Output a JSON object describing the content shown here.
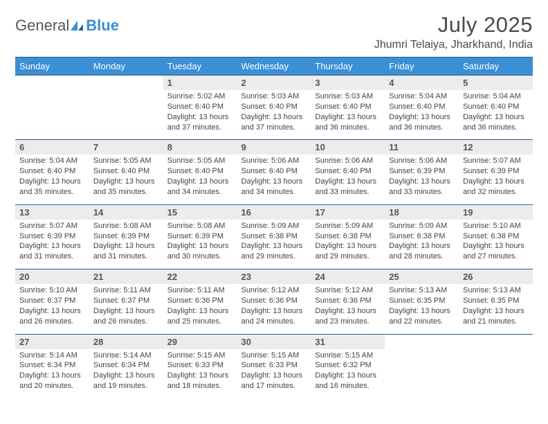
{
  "logo": {
    "text1": "General",
    "text2": "Blue"
  },
  "title": "July 2025",
  "location": "Jhumri Telaiya, Jharkhand, India",
  "colors": {
    "header_bg": "#3b8fd4",
    "header_border": "#2b5d86",
    "numrow_bg": "#ececec",
    "text": "#4a4a4a"
  },
  "typography": {
    "title_fontsize": 31,
    "location_fontsize": 16,
    "dayhead_fontsize": 13,
    "cell_fontsize": 11
  },
  "layout": {
    "cols": 7,
    "rows": 5
  },
  "dayNames": [
    "Sunday",
    "Monday",
    "Tuesday",
    "Wednesday",
    "Thursday",
    "Friday",
    "Saturday"
  ],
  "weeks": [
    [
      null,
      null,
      {
        "n": "1",
        "sr": "5:02 AM",
        "ss": "6:40 PM",
        "dl": "13 hours and 37 minutes."
      },
      {
        "n": "2",
        "sr": "5:03 AM",
        "ss": "6:40 PM",
        "dl": "13 hours and 37 minutes."
      },
      {
        "n": "3",
        "sr": "5:03 AM",
        "ss": "6:40 PM",
        "dl": "13 hours and 36 minutes."
      },
      {
        "n": "4",
        "sr": "5:04 AM",
        "ss": "6:40 PM",
        "dl": "13 hours and 36 minutes."
      },
      {
        "n": "5",
        "sr": "5:04 AM",
        "ss": "6:40 PM",
        "dl": "13 hours and 36 minutes."
      }
    ],
    [
      {
        "n": "6",
        "sr": "5:04 AM",
        "ss": "6:40 PM",
        "dl": "13 hours and 35 minutes."
      },
      {
        "n": "7",
        "sr": "5:05 AM",
        "ss": "6:40 PM",
        "dl": "13 hours and 35 minutes."
      },
      {
        "n": "8",
        "sr": "5:05 AM",
        "ss": "6:40 PM",
        "dl": "13 hours and 34 minutes."
      },
      {
        "n": "9",
        "sr": "5:06 AM",
        "ss": "6:40 PM",
        "dl": "13 hours and 34 minutes."
      },
      {
        "n": "10",
        "sr": "5:06 AM",
        "ss": "6:40 PM",
        "dl": "13 hours and 33 minutes."
      },
      {
        "n": "11",
        "sr": "5:06 AM",
        "ss": "6:39 PM",
        "dl": "13 hours and 33 minutes."
      },
      {
        "n": "12",
        "sr": "5:07 AM",
        "ss": "6:39 PM",
        "dl": "13 hours and 32 minutes."
      }
    ],
    [
      {
        "n": "13",
        "sr": "5:07 AM",
        "ss": "6:39 PM",
        "dl": "13 hours and 31 minutes."
      },
      {
        "n": "14",
        "sr": "5:08 AM",
        "ss": "6:39 PM",
        "dl": "13 hours and 31 minutes."
      },
      {
        "n": "15",
        "sr": "5:08 AM",
        "ss": "6:39 PM",
        "dl": "13 hours and 30 minutes."
      },
      {
        "n": "16",
        "sr": "5:09 AM",
        "ss": "6:38 PM",
        "dl": "13 hours and 29 minutes."
      },
      {
        "n": "17",
        "sr": "5:09 AM",
        "ss": "6:38 PM",
        "dl": "13 hours and 29 minutes."
      },
      {
        "n": "18",
        "sr": "5:09 AM",
        "ss": "6:38 PM",
        "dl": "13 hours and 28 minutes."
      },
      {
        "n": "19",
        "sr": "5:10 AM",
        "ss": "6:38 PM",
        "dl": "13 hours and 27 minutes."
      }
    ],
    [
      {
        "n": "20",
        "sr": "5:10 AM",
        "ss": "6:37 PM",
        "dl": "13 hours and 26 minutes."
      },
      {
        "n": "21",
        "sr": "5:11 AM",
        "ss": "6:37 PM",
        "dl": "13 hours and 26 minutes."
      },
      {
        "n": "22",
        "sr": "5:11 AM",
        "ss": "6:36 PM",
        "dl": "13 hours and 25 minutes."
      },
      {
        "n": "23",
        "sr": "5:12 AM",
        "ss": "6:36 PM",
        "dl": "13 hours and 24 minutes."
      },
      {
        "n": "24",
        "sr": "5:12 AM",
        "ss": "6:36 PM",
        "dl": "13 hours and 23 minutes."
      },
      {
        "n": "25",
        "sr": "5:13 AM",
        "ss": "6:35 PM",
        "dl": "13 hours and 22 minutes."
      },
      {
        "n": "26",
        "sr": "5:13 AM",
        "ss": "6:35 PM",
        "dl": "13 hours and 21 minutes."
      }
    ],
    [
      {
        "n": "27",
        "sr": "5:14 AM",
        "ss": "6:34 PM",
        "dl": "13 hours and 20 minutes."
      },
      {
        "n": "28",
        "sr": "5:14 AM",
        "ss": "6:34 PM",
        "dl": "13 hours and 19 minutes."
      },
      {
        "n": "29",
        "sr": "5:15 AM",
        "ss": "6:33 PM",
        "dl": "13 hours and 18 minutes."
      },
      {
        "n": "30",
        "sr": "5:15 AM",
        "ss": "6:33 PM",
        "dl": "13 hours and 17 minutes."
      },
      {
        "n": "31",
        "sr": "5:15 AM",
        "ss": "6:32 PM",
        "dl": "13 hours and 16 minutes."
      },
      null,
      null
    ]
  ],
  "labels": {
    "sunrise": "Sunrise:",
    "sunset": "Sunset:",
    "daylight": "Daylight:"
  }
}
